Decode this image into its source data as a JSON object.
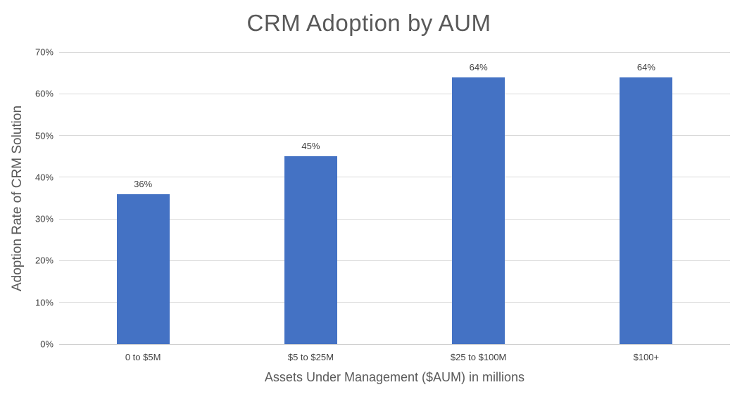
{
  "chart_data": {
    "type": "bar",
    "title": "CRM Adoption by AUM",
    "categories": [
      "0 to $5M",
      "$5 to $25M",
      "$25 to $100M",
      "$100+"
    ],
    "values": [
      36,
      45,
      64,
      64
    ],
    "data_labels": [
      "36%",
      "45%",
      "64%",
      "64%"
    ],
    "xlabel": "Assets Under Management ($AUM) in millions",
    "ylabel": "Adoption Rate of CRM Solution",
    "ylim": [
      0,
      70
    ],
    "ytick_step": 10,
    "ytick_labels": [
      "0%",
      "10%",
      "20%",
      "30%",
      "40%",
      "50%",
      "60%",
      "70%"
    ],
    "grid": "horizontal",
    "legend_position": "none",
    "colors": {
      "bar": "#4472C4",
      "gridline": "#d9d9d9",
      "axis_line": "#d0d0d0",
      "title_text": "#595959",
      "axis_title_text": "#595959",
      "tick_text": "#404040",
      "data_label_text": "#404040",
      "background": "#ffffff"
    }
  }
}
